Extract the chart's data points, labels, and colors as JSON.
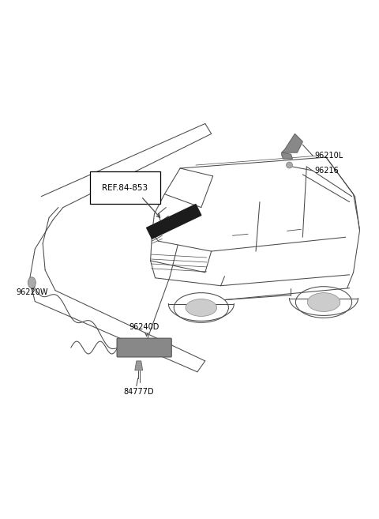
{
  "background_color": "#ffffff",
  "fig_width": 4.8,
  "fig_height": 6.57,
  "dpi": 100,
  "labels": {
    "ref_84_853": "REF.84-853",
    "96210L": "96210L",
    "96216": "96216",
    "96220W": "96220W",
    "96240D": "96240D",
    "84777D": "84777D"
  },
  "line_color": "#4a4a4a",
  "label_color": "#000000",
  "label_fontsize": 7.0,
  "lw": 0.75
}
